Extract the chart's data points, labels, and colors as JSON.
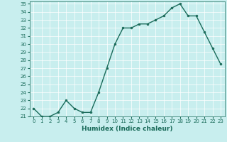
{
  "x": [
    0,
    1,
    2,
    3,
    4,
    5,
    6,
    7,
    8,
    9,
    10,
    11,
    12,
    13,
    14,
    15,
    16,
    17,
    18,
    19,
    20,
    21,
    22,
    23
  ],
  "y": [
    22,
    21,
    21,
    21.5,
    23,
    22,
    21.5,
    21.5,
    24,
    27,
    30,
    32,
    32,
    32.5,
    32.5,
    33,
    33.5,
    34.5,
    35,
    33.5,
    33.5,
    31.5,
    29.5,
    27.5
  ],
  "line_color": "#1a6b5a",
  "marker_color": "#1a6b5a",
  "bg_color": "#c8eeee",
  "grid_color": "#ffffff",
  "xlabel": "Humidex (Indice chaleur)",
  "ylim": [
    21,
    35
  ],
  "xlim_min": -0.5,
  "xlim_max": 23.5,
  "yticks": [
    21,
    22,
    23,
    24,
    25,
    26,
    27,
    28,
    29,
    30,
    31,
    32,
    33,
    34,
    35
  ],
  "xticks": [
    0,
    1,
    2,
    3,
    4,
    5,
    6,
    7,
    8,
    9,
    10,
    11,
    12,
    13,
    14,
    15,
    16,
    17,
    18,
    19,
    20,
    21,
    22,
    23
  ],
  "tick_color": "#1a6b5a",
  "tick_fontsize": 5.0,
  "xlabel_fontsize": 6.5,
  "linewidth": 1.0,
  "markersize": 2.0
}
